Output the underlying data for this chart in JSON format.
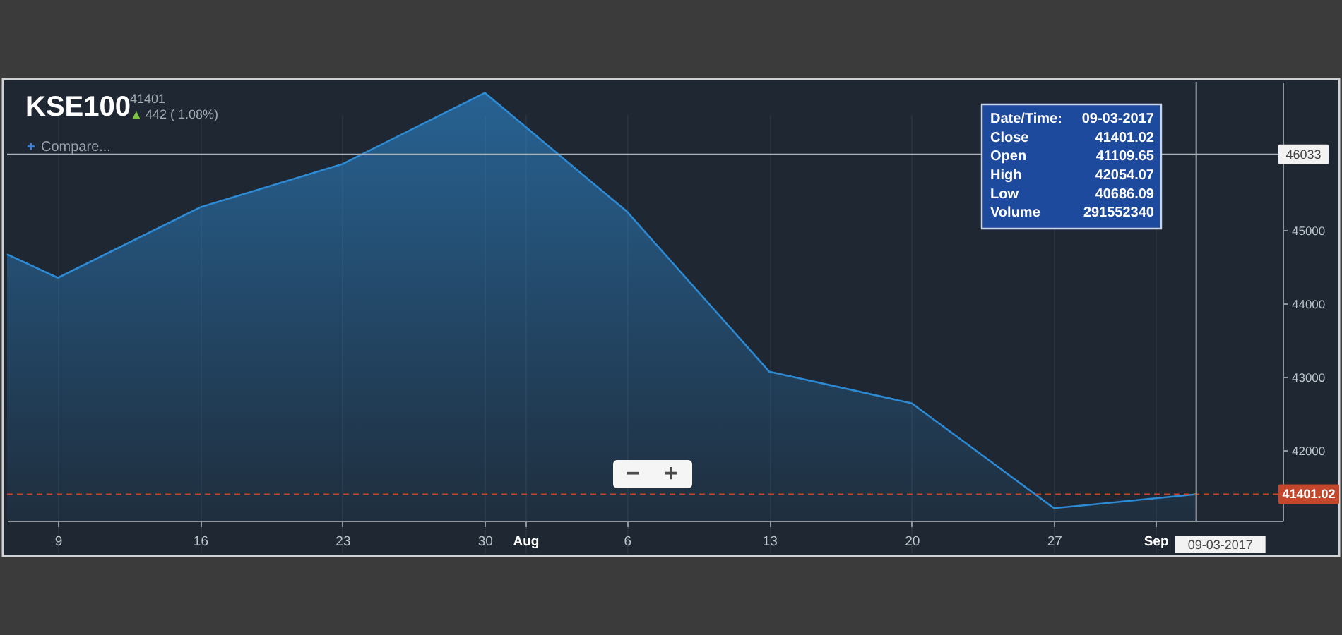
{
  "chart_data": {
    "type": "area",
    "title": "KSE100",
    "subtitle": "41401",
    "x": [
      "2017-07-06T12:00",
      "2017-07-09",
      "2017-07-16",
      "2017-07-23",
      "2017-07-30",
      "2017-08-06",
      "2017-08-13",
      "2017-08-20",
      "2017-08-27",
      "2017-09-03"
    ],
    "series": [
      {
        "color": "#2d8ad4",
        "values": [
          44670,
          44350,
          45310,
          45900,
          46870,
          45250,
          43070,
          42640,
          41210,
          41401.02
        ]
      }
    ],
    "xlim": [
      "2017-07-06T12:00",
      "2017-09-07T06:00"
    ],
    "xticks": [
      {
        "value": "2017-07-09",
        "label": "9"
      },
      {
        "value": "2017-07-16",
        "label": "16"
      },
      {
        "value": "2017-07-23",
        "label": "23"
      },
      {
        "value": "2017-07-30",
        "label": "30"
      },
      {
        "value": "2017-08-01",
        "label": "Aug"
      },
      {
        "value": "2017-08-06",
        "label": "6"
      },
      {
        "value": "2017-08-13",
        "label": "13"
      },
      {
        "value": "2017-08-20",
        "label": "20"
      },
      {
        "value": "2017-08-27",
        "label": "27"
      },
      {
        "value": "2017-09-01",
        "label": "Sep"
      }
    ],
    "ylim": [
      41040,
      47020
    ],
    "yticks": [
      42000,
      43000,
      44000,
      45000
    ],
    "grid": "x",
    "ref_lines": [
      {
        "axis": "y",
        "value": 46033,
        "label": "46033",
        "color": "#aab2ba",
        "line_style": "solid"
      },
      {
        "axis": "y",
        "value": 41401.02,
        "label": "41401.02",
        "color": "#c4472b",
        "line_style": "dashed"
      },
      {
        "axis": "x",
        "value": "2017-09-03",
        "label": "09-03-2017",
        "color": "#aab2ba",
        "line_style": "solid"
      }
    ],
    "annotations": [
      "▲ 442 ( 1.08%)",
      "+ Compare...",
      "Date/Time: 09-03-2017",
      "Close 41401.02",
      "Open 41109.65",
      "High 42054.07",
      "Low 40686.09",
      "Volume 291552340",
      "−",
      "+"
    ]
  }
}
